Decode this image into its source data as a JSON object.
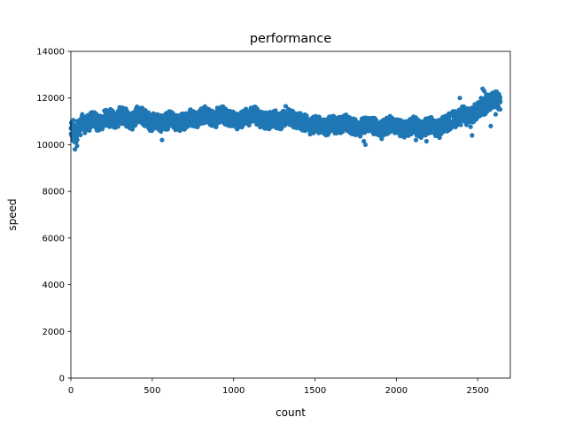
{
  "chart_data": {
    "type": "scatter",
    "title": "performance",
    "xlabel": "count",
    "ylabel": "speed",
    "xlim": [
      0,
      2700
    ],
    "ylim": [
      0,
      14000
    ],
    "x_ticks": [
      0,
      500,
      1000,
      1500,
      2000,
      2500
    ],
    "y_ticks": [
      0,
      2000,
      4000,
      6000,
      8000,
      10000,
      12000,
      14000
    ],
    "grid": false,
    "legend": "none",
    "marker_color": "#1f77b4",
    "series": [
      {
        "x_start": 0,
        "x_end": 2620,
        "x_step": 20,
        "values": [
          10600,
          10400,
          10750,
          11000,
          10850,
          10950,
          11100,
          11050,
          10900,
          11000,
          11150,
          11100,
          11200,
          11050,
          11100,
          11250,
          11200,
          11100,
          11000,
          11150,
          11300,
          11250,
          11150,
          11050,
          10950,
          11000,
          11050,
          10900,
          10950,
          11000,
          11100,
          11050,
          10950,
          10900,
          11000,
          11100,
          11200,
          11150,
          11100,
          11200,
          11250,
          11300,
          11200,
          11150,
          11100,
          11250,
          11300,
          11200,
          11150,
          11100,
          11050,
          11000,
          11100,
          11200,
          11150,
          11250,
          11300,
          11200,
          11100,
          11050,
          11000,
          11100,
          11150,
          11050,
          11000,
          11100,
          11200,
          11150,
          11100,
          11050,
          11000,
          10950,
          10900,
          10800,
          10850,
          10900,
          10850,
          10800,
          10750,
          10850,
          10900,
          10800,
          10850,
          10900,
          10950,
          10850,
          10800,
          10750,
          10700,
          10800,
          10850,
          10900,
          10850,
          10800,
          10700,
          10650,
          10750,
          10800,
          10900,
          10850,
          10800,
          10700,
          10650,
          10700,
          10800,
          10850,
          10750,
          10650,
          10700,
          10800,
          10850,
          10750,
          10700,
          10750,
          10850,
          10900,
          11000,
          11100,
          11050,
          11150,
          11300,
          11200,
          11100,
          11250,
          11400,
          11500,
          11700,
          11600,
          11800,
          11900,
          11950,
          11850
        ]
      },
      {
        "x": [
          25,
          32,
          38,
          10,
          15,
          70,
          300,
          1320,
          1360,
          560,
          1810,
          1800,
          1910,
          2120,
          2185,
          2265,
          2390,
          2440,
          2465,
          2505,
          2530,
          2540,
          2552,
          2580,
          2600,
          2615,
          2610
        ],
        "y": [
          9800,
          10100,
          9950,
          10200,
          11050,
          11300,
          11600,
          11650,
          11200,
          10200,
          10000,
          10150,
          10250,
          10200,
          10150,
          10300,
          12000,
          11550,
          10400,
          11700,
          12400,
          12300,
          12150,
          10800,
          11800,
          12200,
          11300
        ]
      }
    ]
  }
}
